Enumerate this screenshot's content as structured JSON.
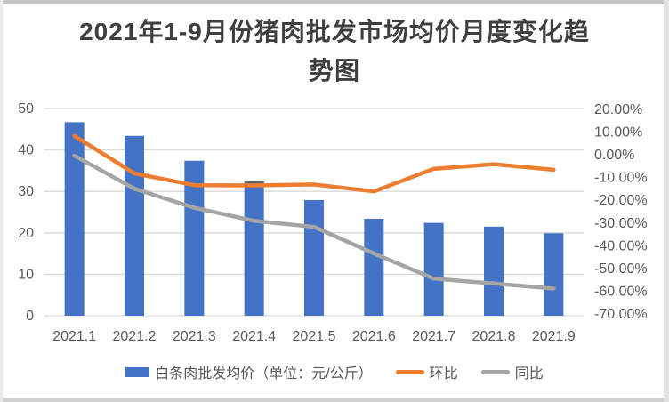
{
  "title": {
    "line1": "2021年1-9月份猪肉批发市场均价月度变化趋",
    "line2": "势图",
    "full": "2021年1-9月份猪肉批发市场均价月度变化趋势图"
  },
  "chart_data": {
    "type": "bar+line combo, dual axis",
    "categories": [
      "2021.1",
      "2021.2",
      "2021.3",
      "2021.4",
      "2021.5",
      "2021.6",
      "2021.7",
      "2021.8",
      "2021.9"
    ],
    "series": [
      {
        "name": "白条肉批发均价（单位：元/公斤）",
        "chart_type": "bar",
        "axis": "left",
        "color": "#4472C4",
        "values": [
          46.7,
          43.4,
          37.4,
          32.4,
          27.9,
          23.4,
          22.4,
          21.5,
          19.9
        ]
      },
      {
        "name": "环比",
        "chart_type": "line",
        "axis": "right",
        "unit": "%",
        "color": "#ED7D31",
        "values": [
          8.1,
          -8.2,
          -13.3,
          -13.4,
          -13.0,
          -16.0,
          -6.2,
          -4.2,
          -6.6
        ]
      },
      {
        "name": "同比",
        "chart_type": "line",
        "axis": "right",
        "unit": "%",
        "color": "#A5A5A5",
        "values": [
          -0.5,
          -14.8,
          -23.1,
          -28.8,
          -31.4,
          -43.0,
          -53.9,
          -56.0,
          -58.2
        ]
      }
    ],
    "left_axis": {
      "min": 0,
      "max": 50,
      "ticks": [
        "50",
        "40",
        "30",
        "20",
        "10",
        "0"
      ]
    },
    "right_axis": {
      "min": -70,
      "max": 20,
      "ticks": [
        "20.00%",
        "10.00%",
        "0.00%",
        "-10.00%",
        "-20.00%",
        "-30.00%",
        "-40.00%",
        "-50.00%",
        "-60.00%",
        "-70.00%"
      ]
    },
    "gridlines": true,
    "gridline_color": "#d9d9d9",
    "legend_position": "bottom",
    "artifacts": [
      {
        "type": "bar-top-cap",
        "category": "2021.4",
        "color": "#5C6571"
      }
    ]
  }
}
